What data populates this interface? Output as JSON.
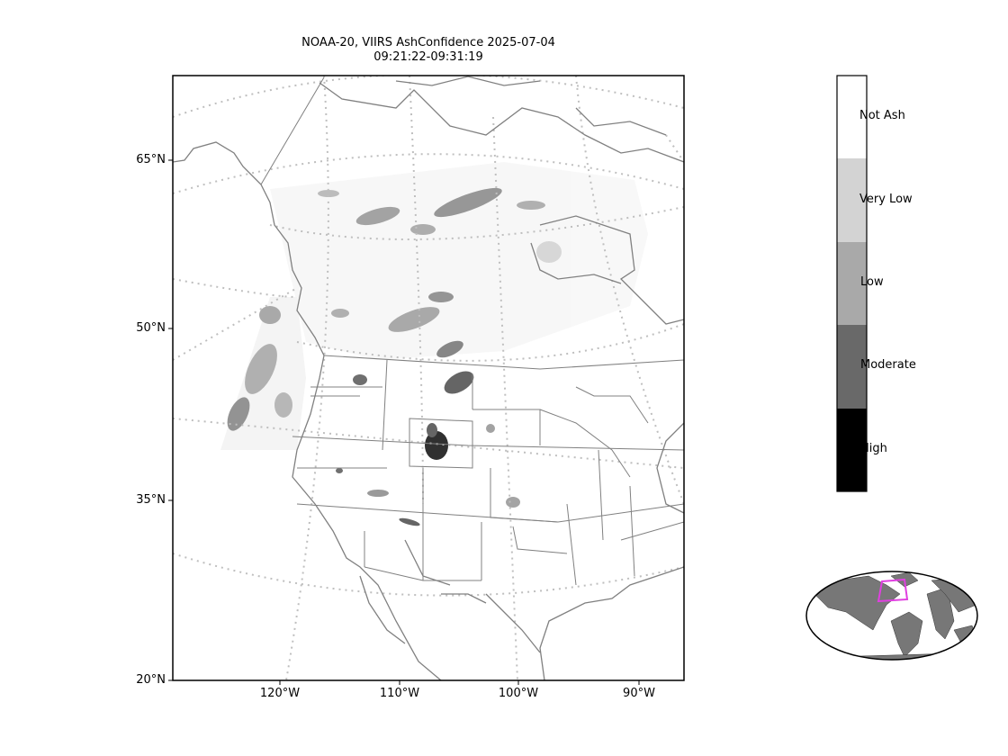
{
  "title": {
    "line1": "NOAA-20, VIIRS AshConfidence 2025-07-04",
    "line2": "09:21:22-09:31:19"
  },
  "lat_labels": [
    "65°N",
    "50°N",
    "35°N",
    "20°N"
  ],
  "lon_labels": [
    "120°W",
    "110°W",
    "100°W",
    "90°W"
  ],
  "colorbar": {
    "categories": [
      {
        "label": "Not Ash",
        "color": "#ffffff"
      },
      {
        "label": "Very Low",
        "color": "#d3d3d3"
      },
      {
        "label": "Low",
        "color": "#a9a9a9"
      },
      {
        "label": "Moderate",
        "color": "#696969"
      },
      {
        "label": "High",
        "color": "#000000"
      }
    ]
  },
  "colors": {
    "coastline": "#808080",
    "gridline": "#bfbfbf",
    "inset_land": "#777777",
    "inset_box": "#e040e0"
  }
}
